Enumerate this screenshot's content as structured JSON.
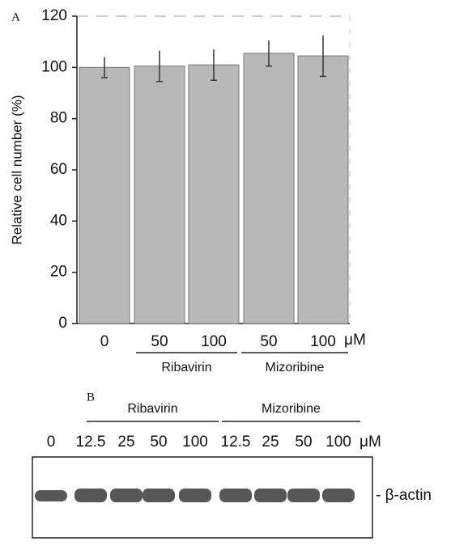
{
  "panel_a_label": "A",
  "chart_data": {
    "type": "bar",
    "y_label": "Relative cell number (%)",
    "categories": [
      "0",
      "50",
      "100",
      "50",
      "100"
    ],
    "values": [
      100,
      100.5,
      101,
      105.5,
      104.5
    ],
    "errors": [
      4,
      6,
      6,
      5,
      8
    ],
    "x_unit": "μM",
    "group_labels": [
      "Ribavirin",
      "Mizoribine"
    ],
    "color": "#b8b8b8",
    "ylim": [
      0,
      120
    ],
    "yticks": [
      0,
      20,
      40,
      60,
      80,
      100,
      120
    ]
  },
  "panel_b": {
    "label": "B",
    "group_labels": [
      "Ribavirin",
      "Mizoribine"
    ],
    "lanes": [
      "0",
      "12.5",
      "25",
      "50",
      "100",
      "12.5",
      "25",
      "50",
      "100"
    ],
    "unit": "μM",
    "band_label": "- β-actin"
  }
}
